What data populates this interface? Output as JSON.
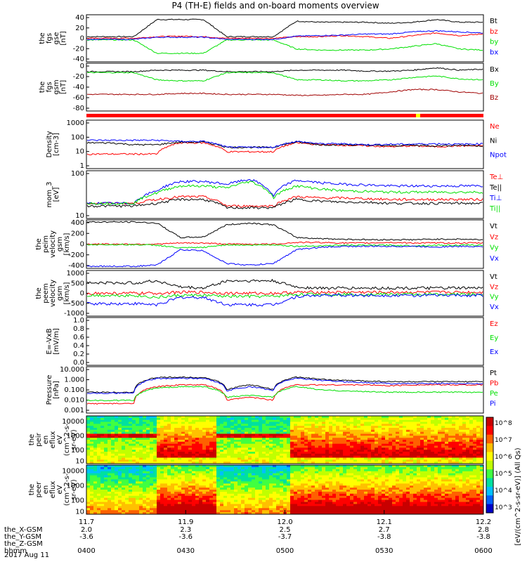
{
  "title": "P4 (TH-E) fields and on-board moments overview",
  "date_label": "2017 Aug 11",
  "x_axis": {
    "tick_values": [
      "11.7",
      "11.9",
      "12.0",
      "12.1",
      "12.2"
    ],
    "rows": [
      {
        "label": "the_X-GSM",
        "values": [
          "2.0",
          "2.3",
          "2.5",
          "2.7",
          "2.8"
        ]
      },
      {
        "label": "the_Y-GSM",
        "values": [
          "-3.6",
          "-3.6",
          "-3.7",
          "-3.8",
          "-3.8"
        ]
      },
      {
        "label": "the_Z-GSM",
        "values": [
          "",
          "",
          "",
          "",
          ""
        ]
      },
      {
        "label": "hhmm",
        "values": [
          "0400",
          "0430",
          "0500",
          "0530",
          "0600"
        ]
      }
    ]
  },
  "colors": {
    "black": "#000000",
    "red": "#ff0000",
    "green": "#00e000",
    "blue": "#0000ff",
    "darkred": "#a00000"
  },
  "chart_data": [
    {
      "type": "line",
      "panel": "fgs_gse",
      "ylabel": [
        "the",
        "fgs",
        "gse",
        "[nT]"
      ],
      "y_ticks": [
        "40",
        "20",
        "0",
        "-20",
        "-40"
      ],
      "ylim": [
        -40,
        40
      ],
      "series": [
        {
          "name": "Bt",
          "color": "#000000",
          "values": [
            3,
            3,
            3,
            35,
            35,
            35,
            3,
            3,
            3,
            32,
            30,
            30,
            30,
            28,
            30,
            35,
            30,
            30
          ]
        },
        {
          "name": "bz",
          "color": "#ff0000",
          "values": [
            0,
            0,
            0,
            3,
            4,
            3,
            0,
            0,
            0,
            3,
            3,
            5,
            3,
            0,
            5,
            10,
            5,
            8
          ]
        },
        {
          "name": "by",
          "color": "#00e000",
          "values": [
            -3,
            -3,
            -3,
            -28,
            -28,
            -28,
            -3,
            -3,
            -3,
            -20,
            -22,
            -22,
            -22,
            -20,
            -15,
            -10,
            -20,
            -22
          ]
        },
        {
          "name": "bx",
          "color": "#0000ff",
          "values": [
            -2,
            -2,
            -2,
            2,
            2,
            2,
            -2,
            -2,
            -2,
            4,
            5,
            6,
            8,
            8,
            12,
            14,
            12,
            10
          ]
        }
      ]
    },
    {
      "type": "line",
      "panel": "fgs_gsm",
      "ylabel": [
        "the",
        "fgs",
        "gsm",
        "[nT]"
      ],
      "y_ticks": [
        "0",
        "-20",
        "-40",
        "-60",
        "-80"
      ],
      "ylim": [
        -80,
        10
      ],
      "series": [
        {
          "name": "Bx",
          "color": "#000000",
          "values": [
            -3,
            -3,
            -3,
            0,
            0,
            0,
            -3,
            -3,
            -3,
            0,
            0,
            0,
            -2,
            -2,
            0,
            5,
            0,
            2
          ]
        },
        {
          "name": "By",
          "color": "#00e000",
          "values": [
            -5,
            -5,
            -5,
            -20,
            -22,
            -22,
            -5,
            -5,
            -5,
            -20,
            -20,
            -22,
            -22,
            -20,
            -15,
            -12,
            -18,
            -20
          ]
        },
        {
          "name": "Bz",
          "color": "#a00000",
          "values": [
            -50,
            -50,
            -50,
            -50,
            -48,
            -48,
            -50,
            -50,
            -50,
            -52,
            -52,
            -50,
            -50,
            -45,
            -40,
            -40,
            -45,
            -48
          ]
        }
      ]
    },
    {
      "type": "line",
      "panel": "density",
      "ylabel": [
        "Density",
        "[cm-3]"
      ],
      "y_ticks": [
        "1000",
        "100",
        "10",
        "1"
      ],
      "log": true,
      "ylim": [
        1,
        1000
      ],
      "series": [
        {
          "name": "Ne",
          "color": "#ff0000",
          "values": [
            7,
            7,
            7,
            7,
            40,
            40,
            10,
            10,
            10,
            40,
            30,
            28,
            25,
            22,
            25,
            22,
            25,
            25
          ]
        },
        {
          "name": "Ni",
          "color": "#000000",
          "values": [
            40,
            40,
            30,
            30,
            45,
            45,
            20,
            20,
            20,
            45,
            30,
            30,
            28,
            25,
            28,
            25,
            28,
            25
          ]
        },
        {
          "name": "Npot",
          "color": "#0000ff",
          "values": [
            60,
            60,
            60,
            60,
            50,
            50,
            20,
            20,
            20,
            50,
            35,
            35,
            30,
            32,
            33,
            35,
            32,
            35
          ]
        }
      ]
    },
    {
      "type": "line",
      "panel": "moments_temperature",
      "ylabel": [
        "mom_3",
        "[eV]"
      ],
      "y_ticks": [
        "100",
        "10"
      ],
      "log": true,
      "ylim": [
        10,
        1000
      ],
      "series": [
        {
          "name": "Te⊥",
          "color": "#ff0000",
          "values": [
            40,
            40,
            40,
            60,
            80,
            80,
            30,
            30,
            30,
            80,
            70,
            70,
            65,
            60,
            60,
            60,
            60,
            60
          ]
        },
        {
          "name": "Te||",
          "color": "#000000",
          "values": [
            30,
            30,
            30,
            40,
            60,
            60,
            25,
            25,
            25,
            60,
            50,
            45,
            45,
            40,
            40,
            40,
            40,
            40
          ]
        },
        {
          "name": "Ti⊥",
          "color": "#0000ff",
          "values": [
            40,
            40,
            40,
            150,
            400,
            400,
            300,
            500,
            80,
            450,
            350,
            300,
            280,
            250,
            250,
            250,
            250,
            250
          ]
        },
        {
          "name": "Ti||",
          "color": "#00e000",
          "values": [
            40,
            40,
            40,
            120,
            250,
            250,
            200,
            400,
            70,
            250,
            180,
            150,
            140,
            130,
            130,
            130,
            130,
            130
          ]
        }
      ]
    },
    {
      "type": "line",
      "panel": "peim_velocity",
      "ylabel": [
        "the",
        "peim",
        "velocity",
        "gsm",
        "[km/s]"
      ],
      "y_ticks": [
        "400",
        "200",
        "0",
        "-200",
        "-400"
      ],
      "ylim": [
        -400,
        400
      ],
      "series": [
        {
          "name": "Vt",
          "color": "#000000",
          "values": [
            400,
            400,
            400,
            380,
            120,
            130,
            350,
            380,
            350,
            120,
            100,
            90,
            80,
            80,
            80,
            90,
            90,
            80
          ]
        },
        {
          "name": "Vz",
          "color": "#ff0000",
          "values": [
            0,
            0,
            0,
            0,
            20,
            20,
            0,
            0,
            0,
            30,
            30,
            20,
            20,
            30,
            20,
            20,
            20,
            20
          ]
        },
        {
          "name": "Vy",
          "color": "#00e000",
          "values": [
            -10,
            -10,
            -10,
            -20,
            -70,
            -60,
            -10,
            -20,
            -10,
            -40,
            -30,
            -20,
            -20,
            -20,
            -30,
            -20,
            -20,
            -20
          ]
        },
        {
          "name": "Vx",
          "color": "#0000ff",
          "values": [
            -400,
            -400,
            -400,
            -380,
            -100,
            -120,
            -350,
            -380,
            -350,
            -100,
            -60,
            -40,
            -40,
            -40,
            -40,
            -50,
            -40,
            -40
          ]
        }
      ]
    },
    {
      "type": "line",
      "panel": "peem_velocity",
      "ylabel": [
        "the",
        "peem",
        "velocity",
        "gsm",
        "[km/s]"
      ],
      "y_ticks": [
        "1000",
        "500",
        "0",
        "-500",
        "-1000"
      ],
      "ylim": [
        -1000,
        1000
      ],
      "series": [
        {
          "name": "Vt",
          "color": "#000000",
          "values": [
            500,
            500,
            500,
            600,
            300,
            250,
            600,
            600,
            600,
            300,
            250,
            250,
            250,
            250,
            250,
            250,
            250,
            250
          ]
        },
        {
          "name": "Vz",
          "color": "#ff0000",
          "values": [
            0,
            0,
            0,
            0,
            50,
            50,
            0,
            0,
            0,
            50,
            50,
            50,
            50,
            50,
            50,
            50,
            50,
            50
          ]
        },
        {
          "name": "Vy",
          "color": "#00e000",
          "values": [
            -100,
            -100,
            -100,
            -200,
            -100,
            -100,
            -150,
            -150,
            -150,
            -50,
            -50,
            -50,
            -50,
            -50,
            -50,
            -50,
            -50,
            -50
          ]
        },
        {
          "name": "Vx",
          "color": "#0000ff",
          "values": [
            -500,
            -500,
            -500,
            -550,
            -200,
            -200,
            -550,
            -550,
            -550,
            -150,
            -100,
            -100,
            -100,
            -100,
            -100,
            -100,
            -100,
            -100
          ]
        }
      ]
    },
    {
      "type": "line",
      "panel": "efield",
      "ylabel": [
        "E=-VxB",
        "[mV/m]"
      ],
      "y_ticks": [
        "1.0",
        "0.8",
        "0.6",
        "0.4",
        "0.2",
        "0.0"
      ],
      "ylim": [
        0,
        1
      ],
      "series": [
        {
          "name": "Ez",
          "color": "#ff0000",
          "values": []
        },
        {
          "name": "Ey",
          "color": "#00e000",
          "values": []
        },
        {
          "name": "Ex",
          "color": "#0000ff",
          "values": []
        }
      ]
    },
    {
      "type": "line",
      "panel": "pressure",
      "ylabel": [
        "Pressure",
        "[nPa]"
      ],
      "y_ticks": [
        "10.000",
        "1.000",
        "0.100",
        "0.010",
        "0.001"
      ],
      "log": true,
      "ylim": [
        0.001,
        10
      ],
      "series": [
        {
          "name": "Pt",
          "color": "#000000",
          "values": [
            0.06,
            0.06,
            0.06,
            1.5,
            1.6,
            1.5,
            0.1,
            0.3,
            0.1,
            1.6,
            1.0,
            0.8,
            0.7,
            0.6,
            0.6,
            0.6,
            0.6,
            0.6
          ]
        },
        {
          "name": "Pb",
          "color": "#ff0000",
          "values": [
            0.005,
            0.005,
            0.005,
            0.2,
            0.3,
            0.3,
            0.01,
            0.02,
            0.01,
            0.3,
            0.3,
            0.3,
            0.3,
            0.25,
            0.3,
            0.3,
            0.3,
            0.3
          ]
        },
        {
          "name": "Pe",
          "color": "#00e000",
          "values": [
            0.01,
            0.01,
            0.01,
            0.15,
            0.2,
            0.2,
            0.02,
            0.03,
            0.02,
            0.2,
            0.1,
            0.08,
            0.07,
            0.06,
            0.06,
            0.06,
            0.06,
            0.06
          ]
        },
        {
          "name": "Pi",
          "color": "#0000ff",
          "values": [
            0.05,
            0.05,
            0.05,
            1.2,
            1.3,
            1.2,
            0.08,
            0.2,
            0.08,
            1.3,
            0.8,
            0.6,
            0.5,
            0.4,
            0.4,
            0.4,
            0.4,
            0.4
          ]
        }
      ]
    },
    {
      "type": "heatmap",
      "panel": "peir_energy_flux",
      "ylabel": [
        "the",
        "peir",
        "en",
        "eflux",
        "eV",
        "(cm^2-s-",
        "sr-eV)"
      ],
      "y_ticks": [
        "10000",
        "1000",
        "100",
        "10"
      ],
      "log": true,
      "ylim": [
        5,
        30000
      ]
    },
    {
      "type": "heatmap",
      "panel": "peer_energy_flux",
      "ylabel": [
        "the",
        "peer",
        "en",
        "eflux",
        "eV",
        "(cm^2-s-",
        "sr-eV)"
      ],
      "y_ticks": [
        "10000",
        "1000",
        "100",
        "10"
      ],
      "log": true,
      "ylim": [
        5,
        30000
      ]
    }
  ],
  "colorbar": {
    "ticks": [
      "10^8",
      "10^7",
      "10^6",
      "10^5",
      "10^4",
      "10^3"
    ],
    "label": "[eV/(cm^2-s-sr-eV)] (All Qs)"
  }
}
